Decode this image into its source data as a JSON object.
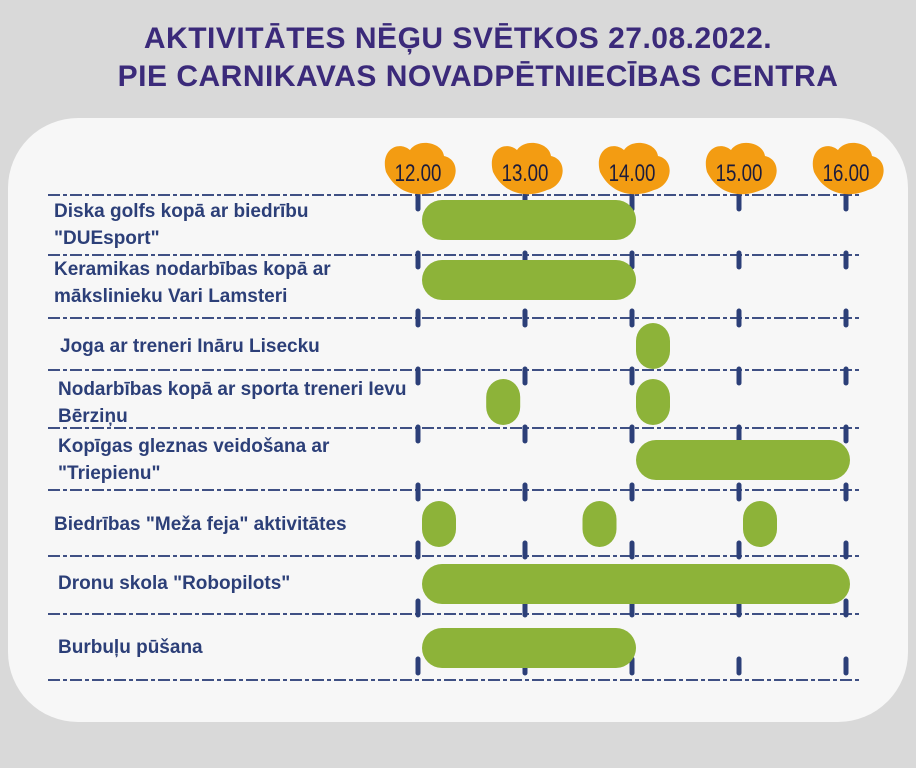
{
  "title_line1": "AKTIVITĀTES NĒĢU SVĒTKOS 27.08.2022.",
  "title_line2": "PIE CARNIKAVAS NOVADPĒTNIECĪBAS CENTRA",
  "colors": {
    "title": "#3b2a7a",
    "label": "#2c3f78",
    "bar": "#8db339",
    "time_badge": "#f39c12",
    "grid": "#2c3f78"
  },
  "chart_data": {
    "type": "gantt",
    "times": [
      "12.00",
      "13.00",
      "14.00",
      "15.00",
      "16.00"
    ],
    "activities": [
      {
        "label": "Diska golfs kopā ar biedrību \"DUEsport\"",
        "spans": [
          [
            12.0,
            14.0
          ]
        ]
      },
      {
        "label": "Keramikas nodarbības kopā ar mākslinieku Vari Lamsteri",
        "spans": [
          [
            12.0,
            14.0
          ]
        ]
      },
      {
        "label": "Joga ar treneri Ināru Lisecku",
        "spans": [
          [
            14.0,
            14.3
          ]
        ]
      },
      {
        "label": "Nodarbības kopā ar sporta treneri Ievu Bērziņu",
        "spans": [
          [
            12.6,
            12.9
          ],
          [
            14.0,
            14.3
          ]
        ]
      },
      {
        "label": "Kopīgas gleznas veidošana ar \"Triepienu\"",
        "spans": [
          [
            14.0,
            16.0
          ]
        ]
      },
      {
        "label": "Biedrības \"Meža feja\" aktivitātes",
        "spans": [
          [
            12.0,
            12.3
          ],
          [
            13.5,
            13.8
          ],
          [
            15.0,
            15.3
          ]
        ]
      },
      {
        "label": "Dronu skola \"Robopilots\"",
        "spans": [
          [
            12.0,
            16.0
          ]
        ]
      },
      {
        "label": "Burbuļu pūšana",
        "spans": [
          [
            12.0,
            14.0
          ]
        ]
      }
    ]
  }
}
